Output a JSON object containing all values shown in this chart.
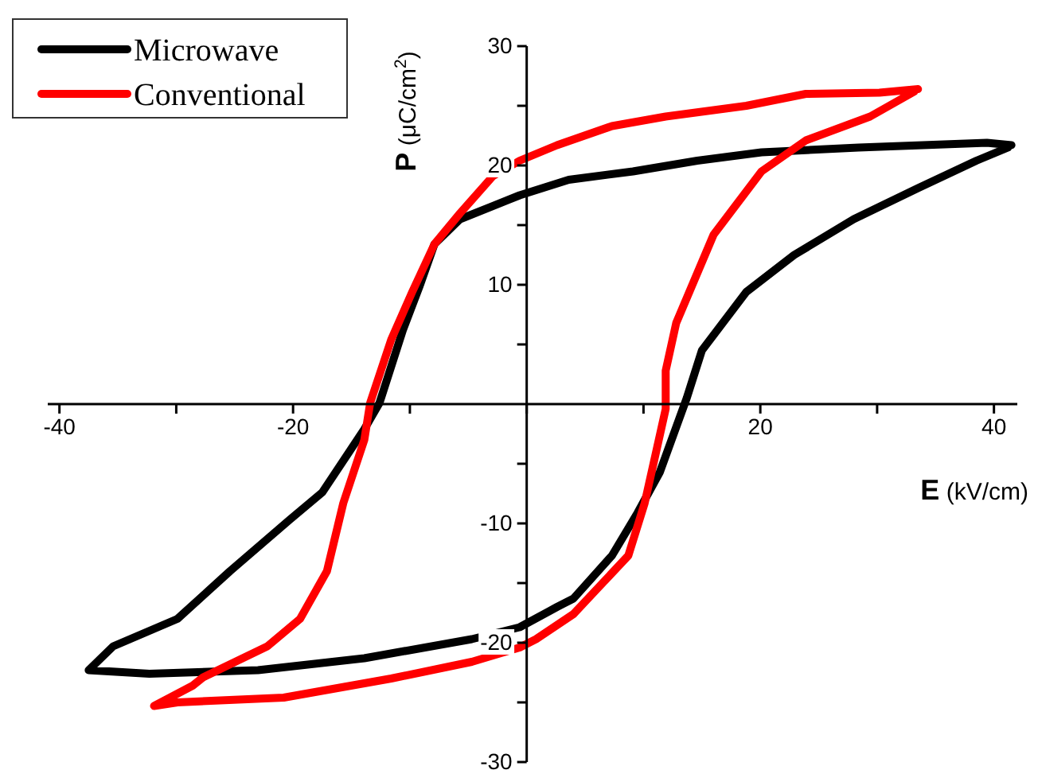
{
  "chart_data": {
    "type": "line",
    "xlabel": "E (kV/cm)",
    "ylabel": "P (μC/cm$^{2}$)",
    "xlim": [
      -41,
      42
    ],
    "ylim": [
      -30,
      30
    ],
    "xticks": [
      -40,
      {
        "value": -30,
        "label": null
      },
      -20,
      {
        "value": -10,
        "label": null
      },
      {
        "value": 0,
        "label": null
      },
      {
        "value": 10,
        "label": null
      },
      20,
      {
        "value": 30,
        "label": null
      },
      40
    ],
    "yticks": [
      {
        "value": -30,
        "label": "-30"
      },
      {
        "value": -25,
        "label": null
      },
      -20,
      {
        "value": -15,
        "label": null
      },
      -10,
      {
        "value": -5,
        "label": null
      },
      {
        "value": 5,
        "label": null
      },
      10,
      {
        "value": 15,
        "label": null
      },
      20,
      {
        "value": 25,
        "label": null
      },
      30
    ],
    "legend": "top left",
    "grid": false,
    "marker": "none",
    "line_style": "solid",
    "series": [
      {
        "name": "Microwave",
        "color": "#000000",
        "x": [
          41.5,
          39.4,
          28.4,
          20.1,
          14.6,
          9.1,
          3.6,
          -0.6,
          -5.7,
          -7.9,
          -9.2,
          -10.6,
          -12.6,
          -13.9,
          -17.5,
          -20.3,
          -25.4,
          -29.9,
          -35.4,
          -37.5,
          -32.3,
          -23.0,
          -13.9,
          -4.7,
          -0.6,
          2.6,
          4.0,
          7.3,
          9.5,
          11.4,
          13.7,
          15.0,
          18.8,
          22.9,
          28.0,
          33.5,
          38.5,
          41.2
        ],
        "values": [
          21.7,
          21.9,
          21.5,
          21.1,
          20.4,
          19.5,
          18.8,
          17.5,
          15.5,
          13.4,
          9.8,
          6.2,
          0.1,
          -2.1,
          -7.4,
          -9.7,
          -14.0,
          -18.0,
          -20.3,
          -22.3,
          -22.6,
          -22.3,
          -21.3,
          -19.7,
          -18.7,
          -17.0,
          -16.3,
          -12.7,
          -9.1,
          -5.7,
          0.5,
          4.5,
          9.4,
          12.5,
          15.5,
          18.1,
          20.4,
          21.5
        ]
      },
      {
        "name": "Conventional",
        "color": "#ff0000",
        "x": [
          33.5,
          30.2,
          23.9,
          18.8,
          11.9,
          7.3,
          2.6,
          -0.6,
          -2.9,
          -5.7,
          -7.9,
          -9.8,
          -11.6,
          -13.4,
          -13.9,
          -15.7,
          -17.1,
          -19.4,
          -22.2,
          -27.7,
          -28.6,
          -31.9,
          -29.9,
          -20.8,
          -11.6,
          -4.7,
          -0.6,
          0.8,
          4.0,
          8.7,
          10.1,
          11.9,
          11.9,
          12.8,
          16.0,
          20.1,
          23.9,
          29.4,
          33.2
        ],
        "values": [
          26.4,
          26.1,
          26.0,
          25.0,
          24.1,
          23.3,
          21.7,
          20.4,
          19.1,
          16.0,
          13.4,
          9.4,
          5.4,
          0.1,
          -3.0,
          -8.3,
          -14.0,
          -18.0,
          -20.3,
          -22.9,
          -23.6,
          -25.3,
          -25.0,
          -24.6,
          -23.0,
          -21.6,
          -20.4,
          -19.7,
          -17.6,
          -12.7,
          -8.3,
          -0.4,
          2.8,
          6.8,
          14.2,
          19.5,
          22.1,
          24.1,
          26.2
        ]
      }
    ]
  }
}
